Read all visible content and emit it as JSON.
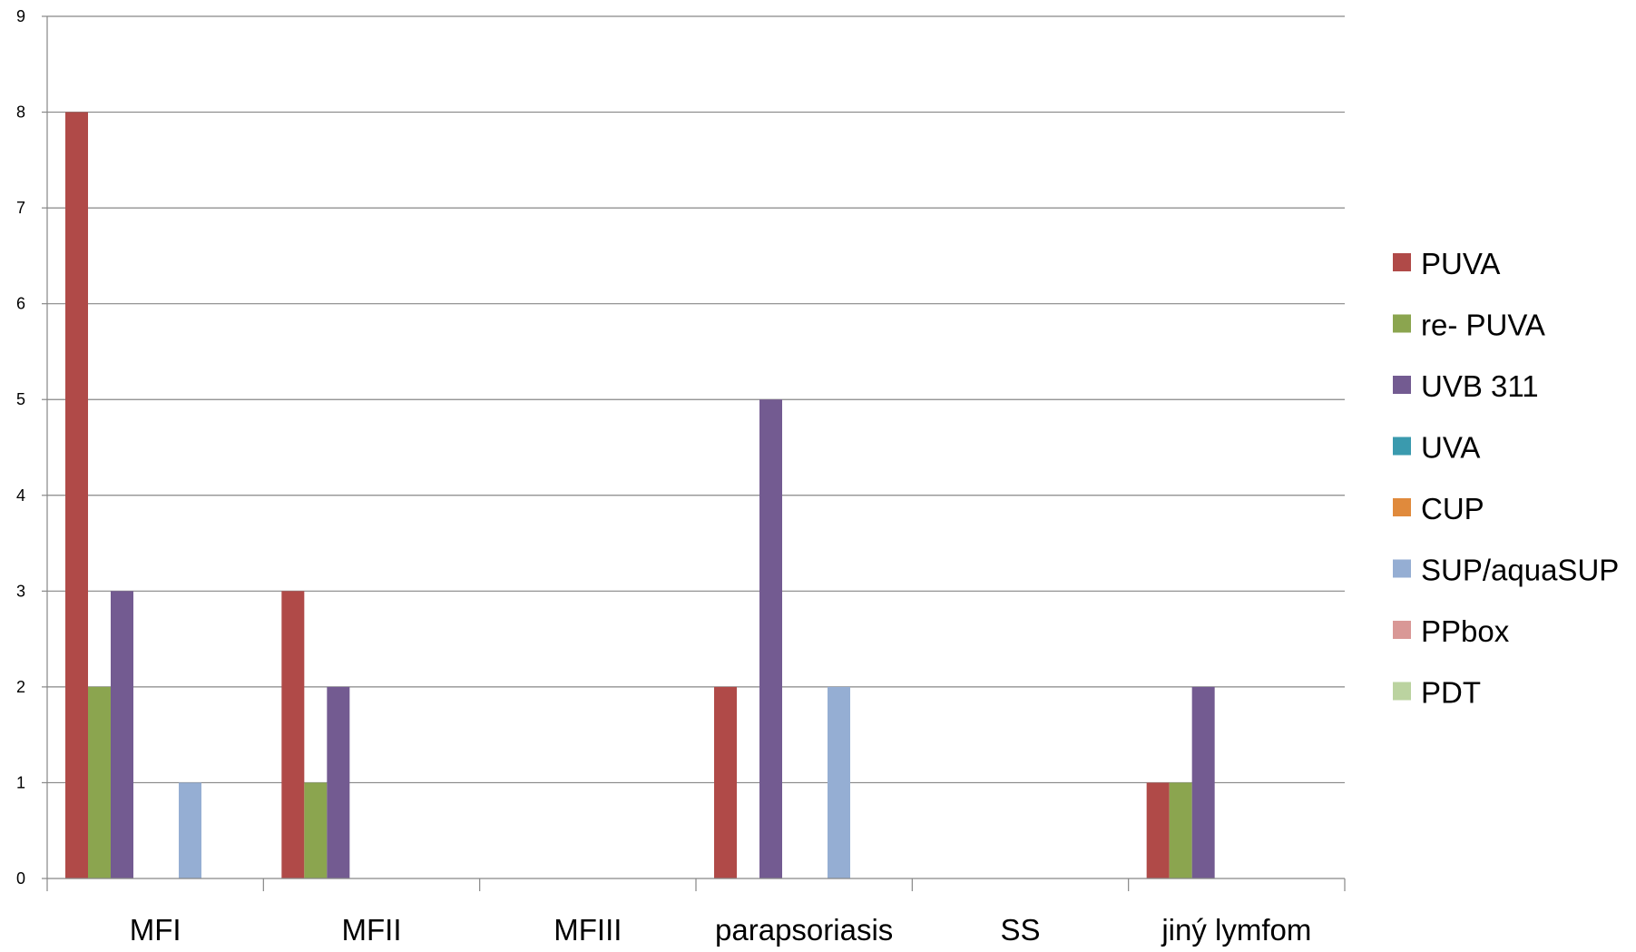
{
  "chart_data": {
    "type": "bar",
    "categories": [
      "MFI",
      "MFII",
      "MFIII",
      "parapsoriasis",
      "SS",
      "jiný lymfom"
    ],
    "series": [
      {
        "name": "PUVA",
        "color": "#B04A48",
        "values": [
          8,
          3,
          0,
          2,
          0,
          1
        ]
      },
      {
        "name": "re- PUVA",
        "color": "#8BA54F",
        "values": [
          2,
          1,
          0,
          0,
          0,
          1
        ]
      },
      {
        "name": "UVB 311",
        "color": "#735B91",
        "values": [
          3,
          2,
          0,
          5,
          0,
          2
        ]
      },
      {
        "name": "UVA",
        "color": "#3A9AAE",
        "values": [
          0,
          0,
          0,
          0,
          0,
          0
        ]
      },
      {
        "name": "CUP",
        "color": "#E08A3C",
        "values": [
          0,
          0,
          0,
          0,
          0,
          0
        ]
      },
      {
        "name": "SUP/aquaSUP",
        "color": "#95AED3",
        "values": [
          1,
          0,
          0,
          2,
          0,
          0
        ]
      },
      {
        "name": "PPbox",
        "color": "#D99896",
        "values": [
          0,
          0,
          0,
          0,
          0,
          0
        ]
      },
      {
        "name": "PDT",
        "color": "#BBD3A0",
        "values": [
          0,
          0,
          0,
          0,
          0,
          0
        ]
      }
    ],
    "yticks": [
      "0",
      "1",
      "2",
      "3",
      "4",
      "5",
      "6",
      "7",
      "8",
      "9"
    ],
    "ylim": [
      0,
      9
    ],
    "grid": true,
    "legend_position": "right",
    "title": "",
    "xlabel": "",
    "ylabel": ""
  }
}
